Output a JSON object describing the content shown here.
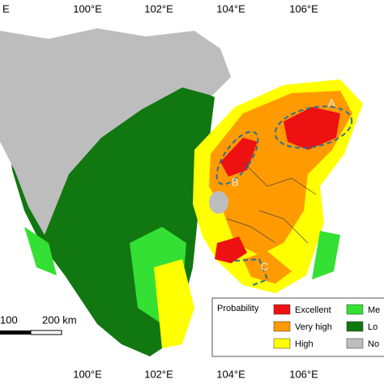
{
  "map": {
    "corner_label": "E",
    "x_labels_top": [
      "100°E",
      "102°E",
      "104°E",
      "106°E"
    ],
    "x_labels_bottom": [
      "100°E",
      "102°E",
      "104°E",
      "106°E"
    ],
    "legend": {
      "title": "Probability",
      "items": [
        {
          "label": "Excellent",
          "color": "#ee1111"
        },
        {
          "label": "Very high",
          "color": "#ff9a00"
        },
        {
          "label": "High",
          "color": "#ffff00"
        },
        {
          "label": "Me",
          "color": "#33e033"
        },
        {
          "label": "Lo",
          "color": "#117711"
        },
        {
          "label": "No",
          "color": "#bdbdbd"
        }
      ]
    },
    "scale_bar": {
      "labels": [
        "100",
        "200 km"
      ]
    },
    "region_labels": [
      "A",
      "B",
      "C"
    ]
  }
}
